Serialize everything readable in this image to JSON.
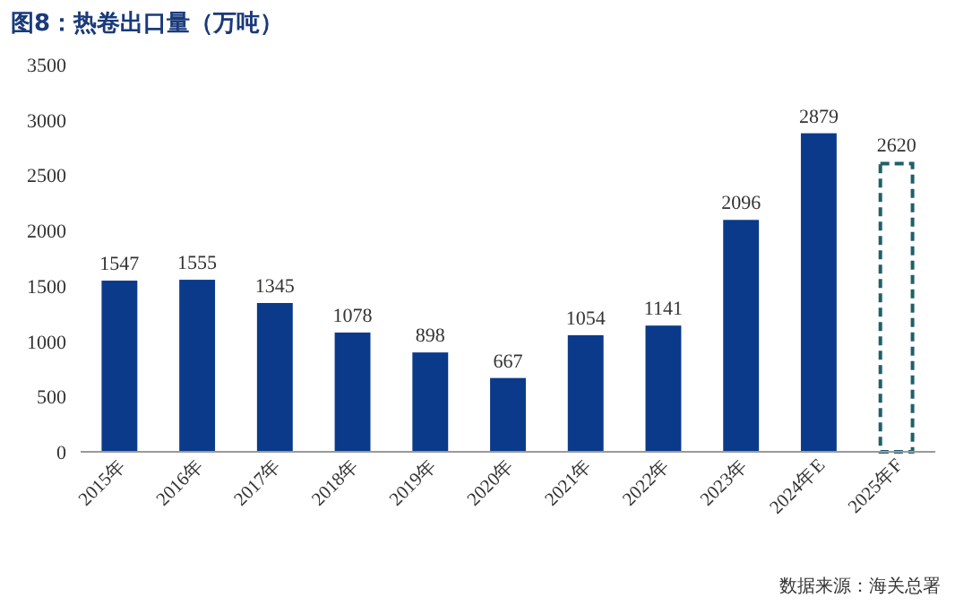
{
  "chart_data": {
    "type": "bar",
    "title": "图8：热卷出口量（万吨）",
    "categories": [
      "2015年",
      "2016年",
      "2017年",
      "2018年",
      "2019年",
      "2020年",
      "2021年",
      "2022年",
      "2023年",
      "2024年E",
      "2025年F"
    ],
    "series": [
      {
        "color": "#0b3a8a",
        "values": [
          1547,
          1555,
          1345,
          1078,
          898,
          667,
          1054,
          1141,
          2096,
          2879,
          null
        ]
      },
      {
        "color": "#1f5f6b",
        "line_style": "dashed",
        "values": [
          null,
          null,
          null,
          null,
          null,
          null,
          null,
          null,
          null,
          null,
          2620
        ]
      }
    ],
    "ylim": [
      0,
      3500
    ],
    "yticks": [
      0,
      500,
      1000,
      1500,
      2000,
      2500,
      3000,
      3500
    ],
    "data_labels": true,
    "annotations": [
      "数据来源：海关总署"
    ]
  }
}
